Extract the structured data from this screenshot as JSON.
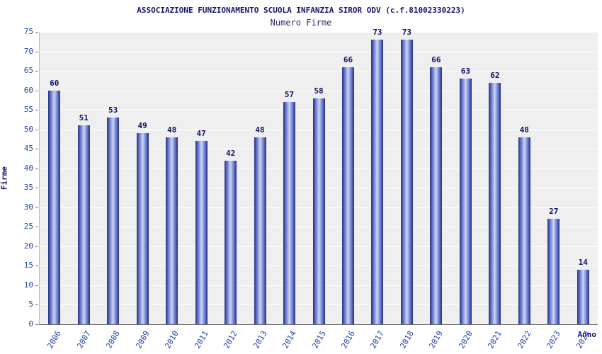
{
  "chart_data": {
    "type": "bar",
    "title": "ASSOCIAZIONE FUNZIONAMENTO SCUOLA INFANZIA SIROR ODV (c.f.81002330223)",
    "subtitle": "Numero Firme",
    "xlabel": "Anno",
    "ylabel": "Firme",
    "categories": [
      "2006",
      "2007",
      "2008",
      "2009",
      "2010",
      "2011",
      "2012",
      "2013",
      "2014",
      "2015",
      "2016",
      "2017",
      "2018",
      "2019",
      "2020",
      "2021",
      "2022",
      "2023",
      "2024"
    ],
    "values": [
      60,
      51,
      53,
      49,
      48,
      47,
      42,
      48,
      57,
      58,
      66,
      73,
      73,
      66,
      63,
      62,
      48,
      27,
      14
    ],
    "ylim": [
      0,
      75
    ],
    "ytick_step": 5,
    "grid": true,
    "legend_position": "none"
  },
  "colors": {
    "title_text": "#16166b",
    "tick_label": "#2244aa",
    "value_label": "#10106a",
    "bar_edge": "#232e85",
    "bar_light": "#cdd5f5",
    "bar_mid": "#7c8dd8",
    "plot_bg": "#efefef",
    "gridline": "#ffffff",
    "axis_line": "#666666"
  }
}
